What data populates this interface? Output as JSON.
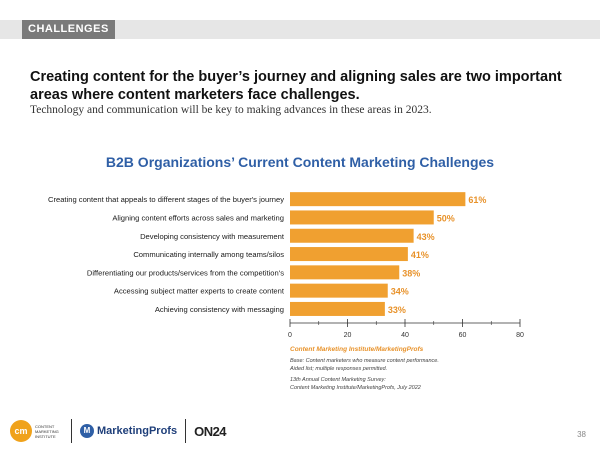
{
  "section_label": "CHALLENGES",
  "headline": "Creating content for the buyer’s journey and aligning sales are two important areas where content marketers face challenges.",
  "subheadline": "Technology and communication will be key to making advances in these areas in 2023.",
  "chart_data": {
    "type": "bar",
    "orientation": "horizontal",
    "title": "B2B Organizations’ Current Content Marketing Challenges",
    "categories": [
      "Creating content that appeals to different stages of the buyer's journey",
      "Aligning content efforts across sales and marketing",
      "Developing consistency with measurement",
      "Communicating internally among teams/silos",
      "Differentiating our products/services from the competition's",
      "Accessing subject matter experts to create content",
      "Achieving consistency with messaging"
    ],
    "values": [
      61,
      50,
      43,
      41,
      38,
      34,
      33
    ],
    "value_labels": [
      "61%",
      "50%",
      "43%",
      "41%",
      "38%",
      "34%",
      "33%"
    ],
    "xlim": [
      0,
      80
    ],
    "xticks": [
      0,
      20,
      40,
      60,
      80
    ],
    "xlabel": "",
    "ylabel": "",
    "grid": false,
    "bar_color": "#f0a030",
    "label_color": "#e8922a"
  },
  "source": {
    "title": "Content Marketing Institute/MarketingProfs",
    "base_line1": "Base: Content marketers who measure content performance.",
    "base_line2": "Aided list; multiple responses permitted.",
    "survey_line1": "13th Annual Content Marketing Survey:",
    "survey_line2": "Content Marketing Institute/MarketingProfs, July 2022"
  },
  "logos": {
    "cmi_mark": "cm",
    "cmi_text": "CONTENT\nMARKETING\nINSTITUTE",
    "marketingprofs": "MarketingProfs",
    "on24": "ON24"
  },
  "page_number": "38"
}
